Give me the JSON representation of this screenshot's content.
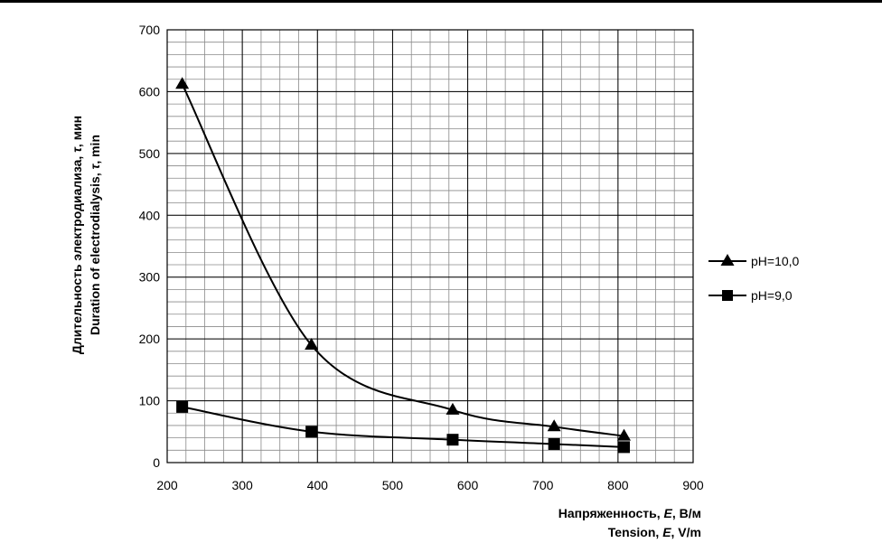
{
  "chart_data": {
    "type": "line",
    "title": "",
    "xlabel": {
      "line1_main": "Напряженность, ",
      "line1_var": "E",
      "line1_unit": ", В/м",
      "line2_main": "Tension, ",
      "line2_var": "E",
      "line2_unit": ", V/m"
    },
    "ylabel": {
      "line1_main": "Длительность электродиализа, ",
      "line1_var": "τ",
      "line1_unit": ", мин",
      "line2_main": "Duration of electrodialysis, ",
      "line2_var": "τ",
      "line2_unit": ", min"
    },
    "xlim": [
      200,
      900
    ],
    "ylim": [
      0,
      700
    ],
    "x_ticks": [
      "200",
      "300",
      "400",
      "500",
      "600",
      "700",
      "800",
      "900"
    ],
    "y_ticks": [
      "0",
      "100",
      "200",
      "300",
      "400",
      "500",
      "600",
      "700"
    ],
    "grid": true,
    "legend_position": "right",
    "series": [
      {
        "name": "pH=10,0",
        "marker": "triangle",
        "color": "#000000",
        "x": [
          220,
          392,
          580,
          715,
          808
        ],
        "y": [
          612,
          190,
          85,
          58,
          43
        ]
      },
      {
        "name": "pH=9,0",
        "marker": "square",
        "color": "#000000",
        "x": [
          220,
          392,
          580,
          715,
          808
        ],
        "y": [
          90,
          50,
          37,
          30,
          25
        ]
      }
    ]
  }
}
